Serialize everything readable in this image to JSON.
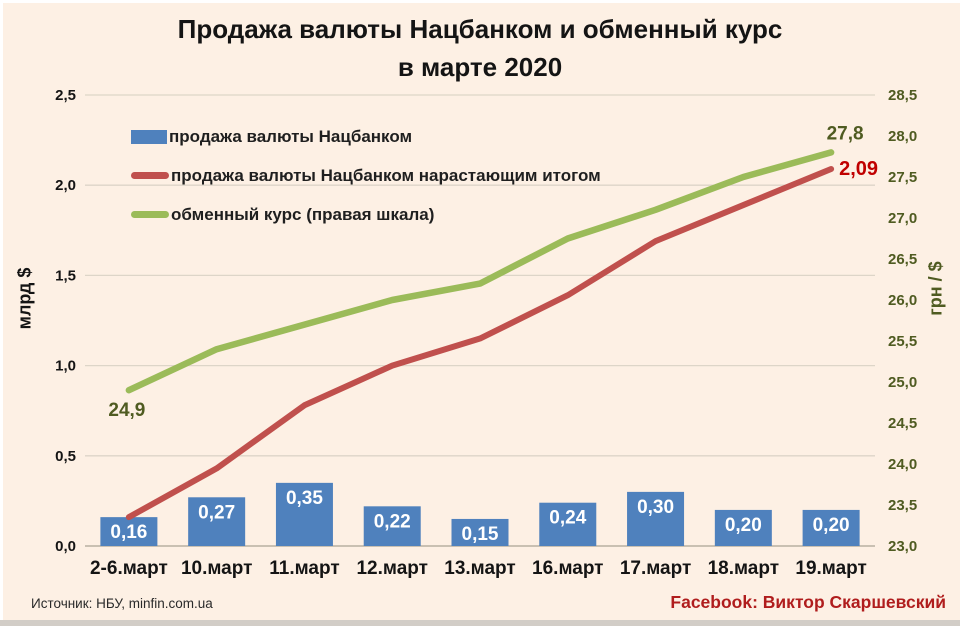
{
  "title": {
    "line1": "Продажа валюты Нацбанком и обменный курс",
    "line2": "в марте 2020"
  },
  "legend": [
    {
      "label": "продажа валюты Нацбанком",
      "color": "#4f81bd",
      "shape": "rect"
    },
    {
      "label": "продажа валюты Нацбанком нарастающим итогом",
      "color": "#c0504d",
      "shape": "line"
    },
    {
      "label": "обменный курс (правая шкала)",
      "color": "#9bbb59",
      "shape": "line"
    }
  ],
  "chart_data": {
    "type": "bar+line combo, dual axis",
    "categories": [
      "2-6.март",
      "10.март",
      "11.март",
      "12.март",
      "13.март",
      "16.март",
      "17.март",
      "18.март",
      "19.март"
    ],
    "series": [
      {
        "name": "продажа валюты Нацбанком",
        "type": "bar",
        "axis": "left",
        "color": "#4f81bd",
        "values": [
          0.16,
          0.27,
          0.35,
          0.22,
          0.15,
          0.24,
          0.3,
          0.2,
          0.2
        ],
        "labels": [
          "0,16",
          "0,27",
          "0,35",
          "0,22",
          "0,15",
          "0,24",
          "0,30",
          "0,20",
          "0,20"
        ],
        "label_color": "#ffffff"
      },
      {
        "name": "продажа валюты Нацбанком нарастающим итогом",
        "type": "line",
        "axis": "left",
        "color": "#c0504d",
        "values": [
          0.16,
          0.43,
          0.78,
          1.0,
          1.15,
          1.39,
          1.69,
          1.89,
          2.09
        ],
        "end_label": "2,09",
        "end_label_color": "#c00000"
      },
      {
        "name": "обменный курс (правая шкала)",
        "type": "line",
        "axis": "right",
        "color": "#9bbb59",
        "values": [
          24.9,
          25.4,
          25.7,
          26.0,
          26.2,
          26.75,
          27.1,
          27.5,
          27.8
        ],
        "start_label": "24,9",
        "end_label": "27,8",
        "label_color": "#4f5b21"
      }
    ],
    "left_axis": {
      "title": "млрд $",
      "min": 0.0,
      "max": 2.5,
      "ticks": [
        "2,5",
        "2,0",
        "1,5",
        "1,0",
        "0,5",
        "0,0"
      ],
      "color": "#141414"
    },
    "right_axis": {
      "title": "грн / $",
      "min": 23.0,
      "max": 28.5,
      "ticks": [
        "28,5",
        "28,0",
        "27,5",
        "27,0",
        "26,5",
        "26,0",
        "25,5",
        "25,0",
        "24,5",
        "24,0",
        "23,5",
        "23,0"
      ],
      "color": "#4f5b21"
    },
    "grid": {
      "visible": true,
      "color": "#ddd5c8",
      "baseline_color": "#c9c0b2"
    },
    "legend_position": "top-left inside plot"
  },
  "footer": {
    "source": "Источник: НБУ, minfin.com.ua",
    "credit": "Facebook: Виктор Скаршевский",
    "credit_color": "#b01d1d"
  }
}
